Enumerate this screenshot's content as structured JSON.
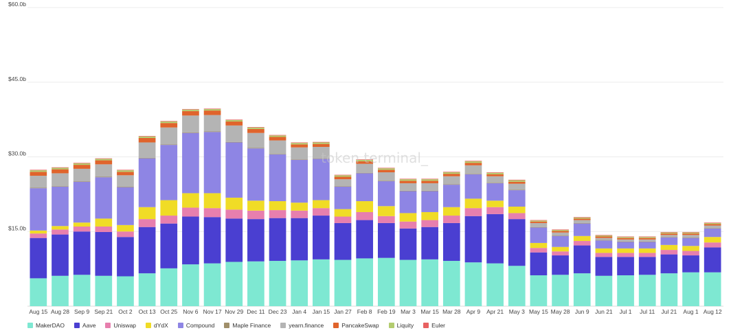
{
  "watermark": "token terminal_",
  "chart_data": {
    "type": "bar",
    "stacked": true,
    "grid": true,
    "legend_position": "bottom-left",
    "ylim": [
      0,
      60
    ],
    "y_ticks": [
      {
        "value": 15,
        "label": "$15.0b"
      },
      {
        "value": 30,
        "label": "$30.0b"
      },
      {
        "value": 45,
        "label": "$45.0b"
      },
      {
        "value": 60,
        "label": "$60.0b"
      }
    ],
    "x_labels": [
      "Aug 15",
      "Aug 28",
      "Sep 9",
      "Sep 21",
      "Oct 2",
      "Oct 13",
      "Oct 25",
      "Nov 6",
      "Nov 17",
      "Nov 29",
      "Dec 11",
      "Dec 23",
      "Jan 4",
      "Jan 15",
      "Jan 27",
      "Feb 8",
      "Feb 19",
      "Mar 3",
      "Mar 15",
      "Mar 28",
      "Apr 9",
      "Apr 21",
      "May 3",
      "May 15",
      "May 28",
      "Jun 9",
      "Jun 21",
      "Jul 1",
      "Jul 11",
      "Jul 21",
      "Aug 1",
      "Aug 12"
    ],
    "series": [
      {
        "name": "MakerDAO",
        "color": "#7ee8d2",
        "values": [
          5.6,
          6.1,
          6.3,
          6.1,
          6.0,
          6.6,
          7.6,
          8.4,
          8.6,
          8.9,
          9.0,
          9.1,
          9.2,
          9.4,
          9.3,
          9.6,
          9.7,
          9.3,
          9.4,
          9.1,
          8.8,
          8.6,
          8.1,
          6.2,
          6.3,
          6.6,
          6.1,
          6.2,
          6.3,
          6.6,
          6.8,
          6.8
        ]
      },
      {
        "name": "Aave",
        "color": "#4a3fd1",
        "values": [
          8.1,
          8.3,
          8.7,
          8.8,
          7.9,
          9.3,
          9.0,
          9.6,
          9.3,
          8.7,
          8.5,
          8.6,
          8.5,
          8.8,
          7.4,
          7.7,
          7.0,
          6.3,
          6.5,
          7.6,
          9.3,
          9.9,
          9.4,
          4.6,
          3.9,
          5.6,
          3.8,
          3.7,
          3.6,
          3.8,
          3.4,
          5.0
        ]
      },
      {
        "name": "Uniswap",
        "color": "#e77fae",
        "values": [
          0.9,
          1.0,
          1.0,
          1.1,
          1.1,
          1.6,
          1.6,
          1.8,
          1.8,
          1.8,
          1.7,
          1.6,
          1.5,
          1.5,
          1.3,
          1.6,
          1.4,
          1.4,
          1.4,
          1.5,
          1.6,
          1.4,
          1.2,
          0.9,
          0.8,
          0.9,
          0.8,
          0.8,
          0.8,
          0.9,
          0.9,
          1.0
        ]
      },
      {
        "name": "dYdX",
        "color": "#f0dc26",
        "values": [
          0.6,
          0.7,
          0.8,
          1.6,
          1.3,
          2.4,
          3.1,
          2.9,
          3.0,
          2.4,
          2.0,
          1.8,
          1.6,
          1.6,
          1.5,
          2.2,
          2.0,
          1.7,
          1.6,
          1.7,
          1.9,
          1.3,
          1.3,
          1.0,
          0.9,
          1.0,
          0.9,
          0.9,
          0.9,
          1.0,
          1.0,
          1.1
        ]
      },
      {
        "name": "Compound",
        "color": "#8e85e4",
        "values": [
          8.5,
          7.9,
          8.2,
          8.3,
          7.6,
          9.8,
          11.1,
          12.1,
          12.3,
          11.1,
          10.5,
          9.4,
          8.6,
          8.3,
          4.5,
          5.6,
          5.0,
          4.4,
          4.2,
          4.5,
          4.9,
          3.5,
          3.3,
          3.1,
          2.2,
          2.5,
          1.6,
          1.3,
          1.3,
          1.5,
          1.6,
          1.7
        ]
      },
      {
        "name": "Maple Finance",
        "color": "#a08f6a",
        "values": [
          0.1,
          0.1,
          0.1,
          0.1,
          0.1,
          0.1,
          0.1,
          0.1,
          0.1,
          0.1,
          0.1,
          0.1,
          0.1,
          0.1,
          0.1,
          0.1,
          0.1,
          0.1,
          0.1,
          0.1,
          0.1,
          0.1,
          0.1,
          0.1,
          0.1,
          0.1,
          0.1,
          0.1,
          0.1,
          0.1,
          0.1,
          0.1
        ]
      },
      {
        "name": "yearn.finance",
        "color": "#b4b4b4",
        "values": [
          2.4,
          2.6,
          2.5,
          2.5,
          2.3,
          3.1,
          3.4,
          3.4,
          3.3,
          3.3,
          3.0,
          2.7,
          2.4,
          2.3,
          1.4,
          1.8,
          1.7,
          1.5,
          1.5,
          1.6,
          1.7,
          1.3,
          1.2,
          0.8,
          0.6,
          0.6,
          0.4,
          0.4,
          0.4,
          0.4,
          0.5,
          0.5
        ]
      },
      {
        "name": "PancakeSwap",
        "color": "#e0642c",
        "values": [
          0.8,
          0.8,
          0.8,
          0.8,
          0.7,
          0.9,
          0.9,
          0.9,
          0.9,
          0.8,
          0.8,
          0.7,
          0.6,
          0.6,
          0.5,
          0.5,
          0.5,
          0.5,
          0.5,
          0.5,
          0.5,
          0.4,
          0.4,
          0.3,
          0.3,
          0.3,
          0.3,
          0.3,
          0.3,
          0.3,
          0.3,
          0.3
        ]
      },
      {
        "name": "Liquity",
        "color": "#b3cc6f",
        "values": [
          0.3,
          0.3,
          0.3,
          0.3,
          0.3,
          0.3,
          0.3,
          0.3,
          0.3,
          0.3,
          0.3,
          0.3,
          0.3,
          0.3,
          0.3,
          0.3,
          0.3,
          0.3,
          0.3,
          0.3,
          0.3,
          0.3,
          0.3,
          0.2,
          0.2,
          0.2,
          0.2,
          0.2,
          0.2,
          0.2,
          0.2,
          0.2
        ]
      },
      {
        "name": "Euler",
        "color": "#e86161",
        "values": [
          0.1,
          0.1,
          0.1,
          0.1,
          0.1,
          0.1,
          0.1,
          0.1,
          0.1,
          0.1,
          0.1,
          0.1,
          0.1,
          0.1,
          0.1,
          0.1,
          0.1,
          0.1,
          0.1,
          0.1,
          0.1,
          0.1,
          0.1,
          0.1,
          0.1,
          0.1,
          0.1,
          0.1,
          0.1,
          0.1,
          0.1,
          0.1
        ]
      }
    ]
  }
}
